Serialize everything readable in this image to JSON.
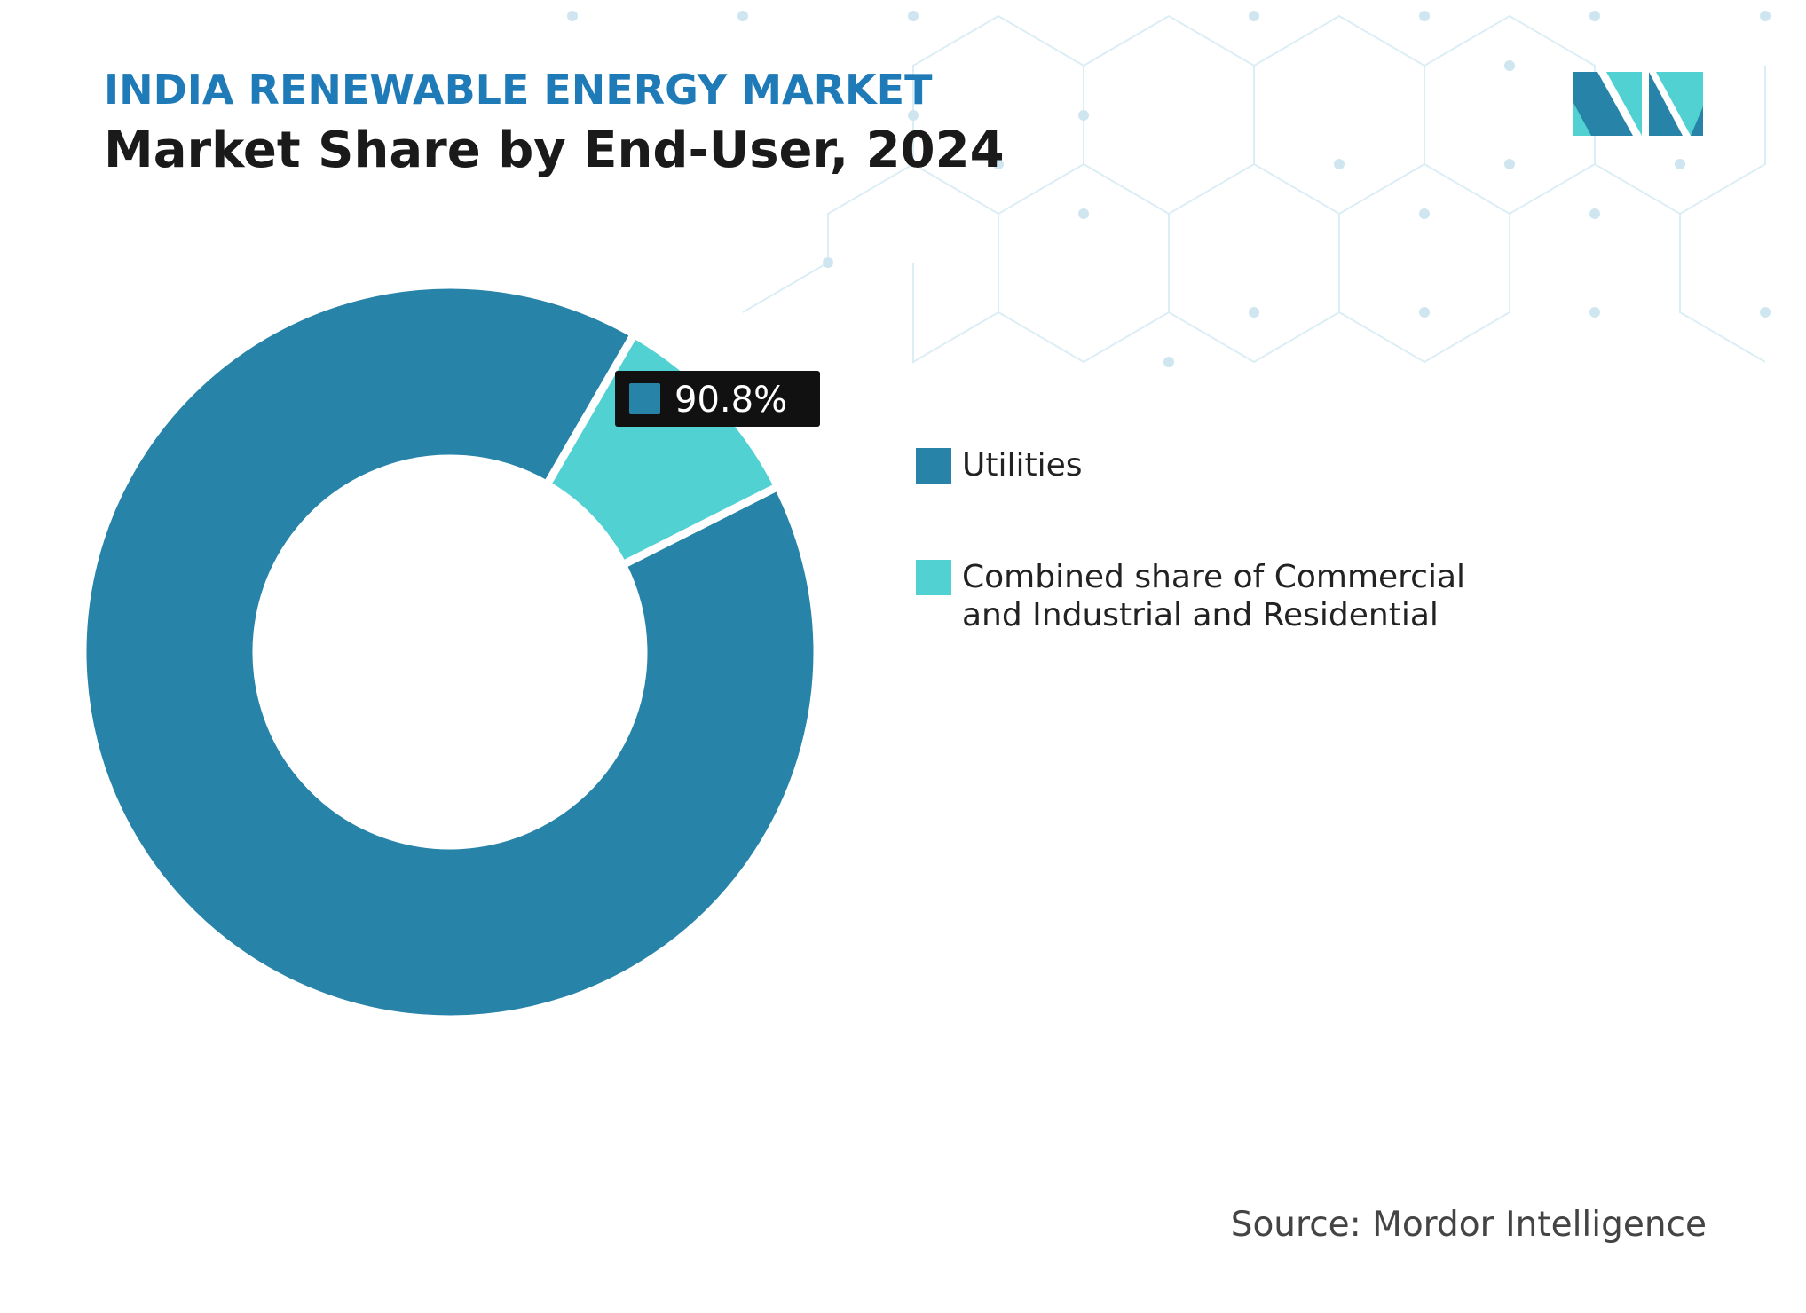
{
  "chart_data": {
    "type": "donut",
    "subtitle": "INDIA RENEWABLE ENERGY MARKET",
    "title": "Market Share by End-User, 2024",
    "categories": [
      "Utilities",
      "Combined share of Commercial and Industrial and Residential"
    ],
    "values": [
      90.8,
      9.2
    ],
    "value_labels": [
      "90.8%",
      null
    ],
    "colors": [
      "#2784a8",
      "#52d1d3"
    ],
    "source": "Source: Mordor Intelligence"
  }
}
